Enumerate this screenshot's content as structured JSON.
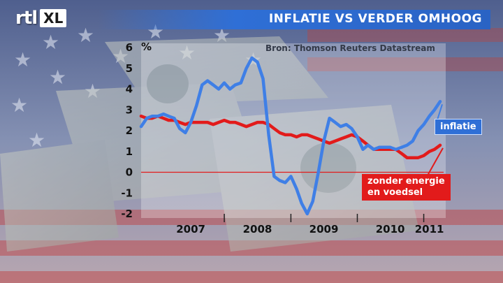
{
  "header": {
    "logo_rtl": "rtl",
    "logo_xl": "XL",
    "title": "INFLATIE VS VERDER OMHOOG"
  },
  "colors": {
    "title_bar": "#2f6fd6",
    "series_inflatie": "#3f7fe6",
    "series_kern": "#e21b1b",
    "zero_line": "#e21b1b"
  },
  "chart_data": {
    "type": "line",
    "source": "Bron: Thomson Reuters Datastream",
    "yunit": "%",
    "ylim": [
      -2,
      6
    ],
    "yticks": [
      "6",
      "5",
      "4",
      "3",
      "2",
      "1",
      "0",
      "-1",
      "-2"
    ],
    "xticks": [
      "2007",
      "2008",
      "2009",
      "2010",
      "2011"
    ],
    "grid": false,
    "series": [
      {
        "name": "inflatie",
        "x": [
          "2006-10",
          "2006-11",
          "2006-12",
          "2007-01",
          "2007-02",
          "2007-03",
          "2007-04",
          "2007-05",
          "2007-06",
          "2007-07",
          "2007-08",
          "2007-09",
          "2007-10",
          "2007-11",
          "2007-12",
          "2008-01",
          "2008-02",
          "2008-03",
          "2008-04",
          "2008-05",
          "2008-06",
          "2008-07",
          "2008-08",
          "2008-09",
          "2008-10",
          "2008-11",
          "2008-12",
          "2009-01",
          "2009-02",
          "2009-03",
          "2009-04",
          "2009-05",
          "2009-06",
          "2009-07",
          "2009-08",
          "2009-09",
          "2009-10",
          "2009-11",
          "2009-12",
          "2010-01",
          "2010-02",
          "2010-03",
          "2010-04",
          "2010-05",
          "2010-06",
          "2010-07",
          "2010-08",
          "2010-09",
          "2010-10",
          "2010-11",
          "2010-12",
          "2011-01",
          "2011-02",
          "2011-03",
          "2011-04"
        ],
        "values": [
          2.2,
          2.6,
          2.7,
          2.7,
          2.8,
          2.7,
          2.6,
          2.1,
          1.9,
          2.4,
          3.2,
          4.2,
          4.4,
          4.2,
          4.0,
          4.3,
          4.0,
          4.2,
          4.3,
          5.0,
          5.5,
          5.3,
          4.5,
          1.8,
          -0.2,
          -0.4,
          -0.5,
          -0.2,
          -0.8,
          -1.5,
          -2.0,
          -1.4,
          0.0,
          1.5,
          2.6,
          2.4,
          2.2,
          2.3,
          2.1,
          1.7,
          1.1,
          1.3,
          1.1,
          1.2,
          1.2,
          1.2,
          1.1,
          1.2,
          1.3,
          1.5,
          2.0,
          2.3,
          2.7,
          3.0,
          3.4
        ]
      },
      {
        "name": "zonder energie en voedsel",
        "x": [
          "2006-10",
          "2006-11",
          "2006-12",
          "2007-01",
          "2007-02",
          "2007-03",
          "2007-04",
          "2007-05",
          "2007-06",
          "2007-07",
          "2007-08",
          "2007-09",
          "2007-10",
          "2007-11",
          "2007-12",
          "2008-01",
          "2008-02",
          "2008-03",
          "2008-04",
          "2008-05",
          "2008-06",
          "2008-07",
          "2008-08",
          "2008-09",
          "2008-10",
          "2008-11",
          "2008-12",
          "2009-01",
          "2009-02",
          "2009-03",
          "2009-04",
          "2009-05",
          "2009-06",
          "2009-07",
          "2009-08",
          "2009-09",
          "2009-10",
          "2009-11",
          "2009-12",
          "2010-01",
          "2010-02",
          "2010-03",
          "2010-04",
          "2010-05",
          "2010-06",
          "2010-07",
          "2010-08",
          "2010-09",
          "2010-10",
          "2010-11",
          "2010-12",
          "2011-01",
          "2011-02",
          "2011-03",
          "2011-04"
        ],
        "values": [
          2.7,
          2.6,
          2.6,
          2.7,
          2.6,
          2.5,
          2.5,
          2.4,
          2.3,
          2.4,
          2.4,
          2.4,
          2.4,
          2.3,
          2.4,
          2.5,
          2.4,
          2.4,
          2.3,
          2.2,
          2.3,
          2.4,
          2.4,
          2.3,
          2.1,
          1.9,
          1.8,
          1.8,
          1.7,
          1.8,
          1.8,
          1.7,
          1.6,
          1.5,
          1.4,
          1.5,
          1.6,
          1.7,
          1.8,
          1.7,
          1.5,
          1.3,
          1.1,
          1.1,
          1.1,
          1.1,
          1.1,
          0.9,
          0.7,
          0.7,
          0.7,
          0.8,
          1.0,
          1.1,
          1.3
        ]
      }
    ]
  },
  "labels": {
    "inflatie": "inflatie",
    "kern_line1": "zonder energie",
    "kern_line2": "en voedsel"
  }
}
